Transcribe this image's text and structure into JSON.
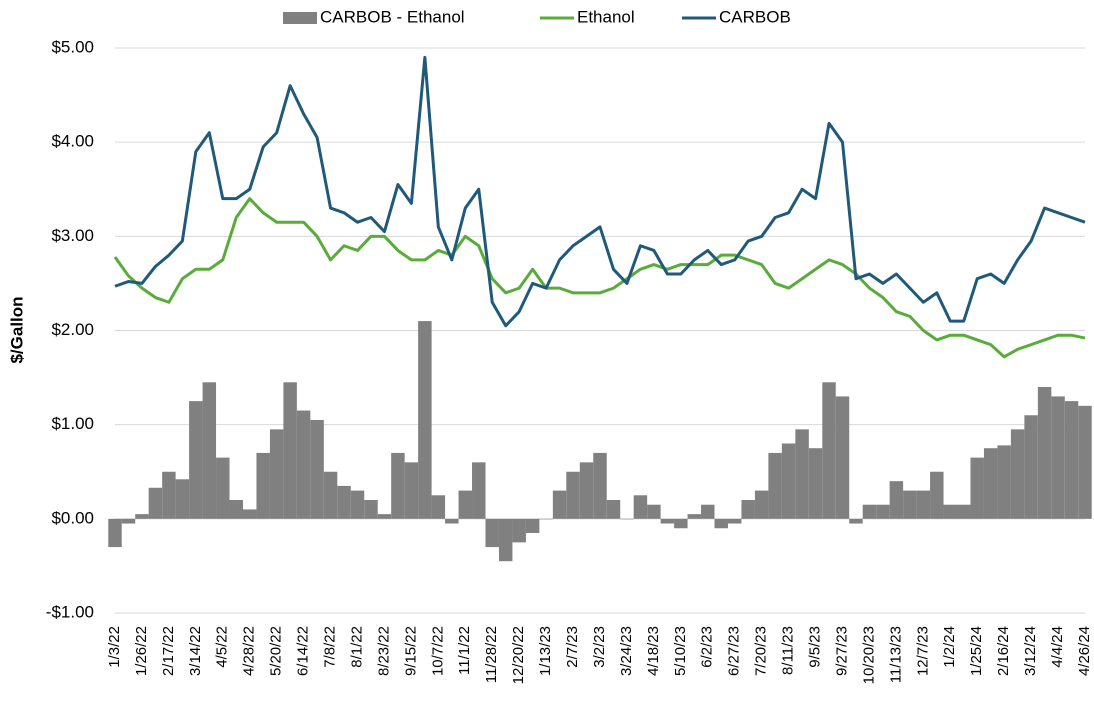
{
  "chart_data": {
    "type": "combo",
    "ylabel": "$/Gallon",
    "categories": [
      "1/3/22",
      null,
      "1/26/22",
      null,
      "2/17/22",
      null,
      "3/14/22",
      null,
      "4/5/22",
      null,
      "4/28/22",
      null,
      "5/20/22",
      null,
      "6/14/22",
      null,
      "7/8/22",
      null,
      "8/1/22",
      null,
      "8/23/22",
      null,
      "9/15/22",
      null,
      "10/7/22",
      null,
      "11/1/22",
      null,
      "11/28/22",
      null,
      "12/20/22",
      null,
      "1/13/23",
      null,
      "2/7/23",
      null,
      "3/2/23",
      null,
      "3/24/23",
      null,
      "4/18/23",
      null,
      "5/10/23",
      null,
      "6/2/23",
      null,
      "6/27/23",
      null,
      "7/20/23",
      null,
      "8/11/23",
      null,
      "9/5/23",
      null,
      "9/27/23",
      null,
      "10/20/23",
      null,
      "11/13/23",
      null,
      "12/7/23",
      null,
      "1/2/24",
      null,
      "1/25/24",
      null,
      "2/16/24",
      null,
      "3/12/24",
      null,
      "4/4/24",
      null,
      "4/26/24"
    ],
    "series": [
      {
        "name": "CARBOB - Ethanol",
        "type": "bar",
        "color": "#808080",
        "values": [
          -0.3,
          -0.05,
          0.05,
          0.33,
          0.5,
          0.42,
          1.25,
          1.45,
          0.65,
          0.2,
          0.1,
          0.7,
          0.95,
          1.45,
          1.15,
          1.05,
          0.5,
          0.35,
          0.3,
          0.2,
          0.05,
          0.7,
          0.6,
          2.1,
          0.25,
          -0.05,
          0.3,
          0.6,
          -0.3,
          -0.45,
          -0.25,
          -0.15,
          0.0,
          0.3,
          0.5,
          0.6,
          0.7,
          0.2,
          0.0,
          0.25,
          0.15,
          -0.05,
          -0.1,
          0.05,
          0.15,
          -0.1,
          -0.05,
          0.2,
          0.3,
          0.7,
          0.8,
          0.95,
          0.75,
          1.45,
          1.3,
          -0.05,
          0.15,
          0.15,
          0.4,
          0.3,
          0.3,
          0.5,
          0.15,
          0.15,
          0.65,
          0.75,
          0.78,
          0.95,
          1.1,
          1.4,
          1.3,
          1.25,
          1.2
        ]
      },
      {
        "name": "Ethanol",
        "type": "line",
        "color": "#5aac3a",
        "values": [
          2.78,
          2.58,
          2.45,
          2.35,
          2.3,
          2.55,
          2.65,
          2.65,
          2.75,
          3.2,
          3.4,
          3.25,
          3.15,
          3.15,
          3.15,
          3.0,
          2.75,
          2.9,
          2.85,
          3.0,
          3.0,
          2.85,
          2.75,
          2.75,
          2.85,
          2.8,
          3.0,
          2.9,
          2.55,
          2.4,
          2.45,
          2.65,
          2.45,
          2.45,
          2.4,
          2.4,
          2.4,
          2.45,
          2.55,
          2.65,
          2.7,
          2.65,
          2.7,
          2.7,
          2.7,
          2.8,
          2.8,
          2.75,
          2.7,
          2.5,
          2.45,
          2.55,
          2.65,
          2.75,
          2.7,
          2.6,
          2.45,
          2.35,
          2.2,
          2.15,
          2.0,
          1.9,
          1.95,
          1.95,
          1.9,
          1.85,
          1.72,
          1.8,
          1.85,
          1.9,
          1.95,
          1.95,
          1.92
        ]
      },
      {
        "name": "CARBOB",
        "type": "line",
        "color": "#1f5a7a",
        "values": [
          2.47,
          2.52,
          2.5,
          2.68,
          2.8,
          2.95,
          3.9,
          4.1,
          3.4,
          3.4,
          3.5,
          3.95,
          4.1,
          4.6,
          4.3,
          4.05,
          3.3,
          3.25,
          3.15,
          3.2,
          3.05,
          3.55,
          3.35,
          4.9,
          3.1,
          2.75,
          3.3,
          3.5,
          2.3,
          2.05,
          2.2,
          2.5,
          2.45,
          2.75,
          2.9,
          3.0,
          3.1,
          2.65,
          2.5,
          2.9,
          2.85,
          2.6,
          2.6,
          2.75,
          2.85,
          2.7,
          2.75,
          2.95,
          3.0,
          3.2,
          3.25,
          3.5,
          3.4,
          4.2,
          4.0,
          2.55,
          2.6,
          2.5,
          2.6,
          2.45,
          2.3,
          2.4,
          2.1,
          2.1,
          2.55,
          2.6,
          2.5,
          2.75,
          2.95,
          3.3,
          3.25,
          3.2,
          3.15
        ]
      }
    ],
    "ylim": [
      -1,
      5
    ],
    "yticks": [
      {
        "value": -1,
        "label": "-$1.00"
      },
      {
        "value": 0,
        "label": "$0.00"
      },
      {
        "value": 1,
        "label": "$1.00"
      },
      {
        "value": 2,
        "label": "$2.00"
      },
      {
        "value": 3,
        "label": "$3.00"
      },
      {
        "value": 4,
        "label": "$4.00"
      },
      {
        "value": 5,
        "label": "$5.00"
      }
    ],
    "grid": true
  }
}
